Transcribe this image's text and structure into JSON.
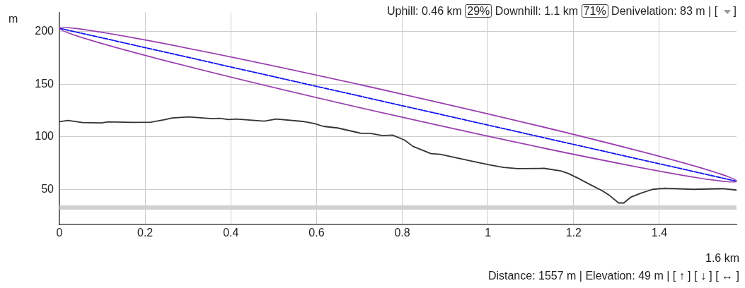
{
  "chart_data": {
    "type": "line",
    "ylabel": "m",
    "xlabel": "1.6 km",
    "annotations": [
      "Uphill: 0.46 km",
      "29%",
      "Downhill: 1.1 km",
      "71%",
      "Denivelation: 83 m | [",
      "]",
      "Distance: 1557 m  |  Elevation: 49 m  |  [ ↑ ] [ ↓ ] [ ↔ ]"
    ],
    "xlim": [
      0,
      1.58
    ],
    "xticks": [
      0,
      0.2,
      0.4,
      0.6,
      0.8,
      1,
      1.2,
      1.4
    ],
    "ylim": [
      17,
      218
    ],
    "yticks": [
      50,
      100,
      150,
      200
    ],
    "grid": true,
    "legend": false,
    "marker": "none",
    "ref_lines": [
      {
        "axis": "y",
        "value": 33,
        "color": "#d0d0d0"
      }
    ],
    "series": [
      {
        "color": "#333333",
        "x": [
          0,
          0.02,
          0.054,
          0.098,
          0.114,
          0.17,
          0.213,
          0.247,
          0.263,
          0.302,
          0.357,
          0.374,
          0.395,
          0.412,
          0.478,
          0.506,
          0.567,
          0.594,
          0.616,
          0.649,
          0.704,
          0.725,
          0.754,
          0.777,
          0.805,
          0.825,
          0.867,
          0.889,
          0.957,
          1.002,
          1.036,
          1.069,
          1.131,
          1.17,
          1.187,
          1.21,
          1.238,
          1.266,
          1.283,
          1.305,
          1.317,
          1.333,
          1.356,
          1.384,
          1.412,
          1.48,
          1.547,
          1.58
        ],
        "values": [
          114.5,
          115.6,
          113.6,
          113.3,
          114.3,
          113.8,
          114,
          116.4,
          118,
          118.9,
          117.3,
          117.6,
          116.4,
          116.9,
          114.9,
          116.9,
          114.7,
          112.7,
          110,
          108.5,
          103.4,
          103.4,
          101.2,
          101.7,
          97.1,
          91,
          84.2,
          83.5,
          77.4,
          73.6,
          71.1,
          69.9,
          70.2,
          67.7,
          65.4,
          60.9,
          54.9,
          49.1,
          44.7,
          37.4,
          37.4,
          42.8,
          46.5,
          50.3,
          51.4,
          50.3,
          51,
          49.6
        ]
      },
      {
        "color": "#1010ee",
        "line_style": "dashed",
        "x": [
          0,
          1.58
        ],
        "values": [
          203,
          58
        ]
      }
    ]
  }
}
